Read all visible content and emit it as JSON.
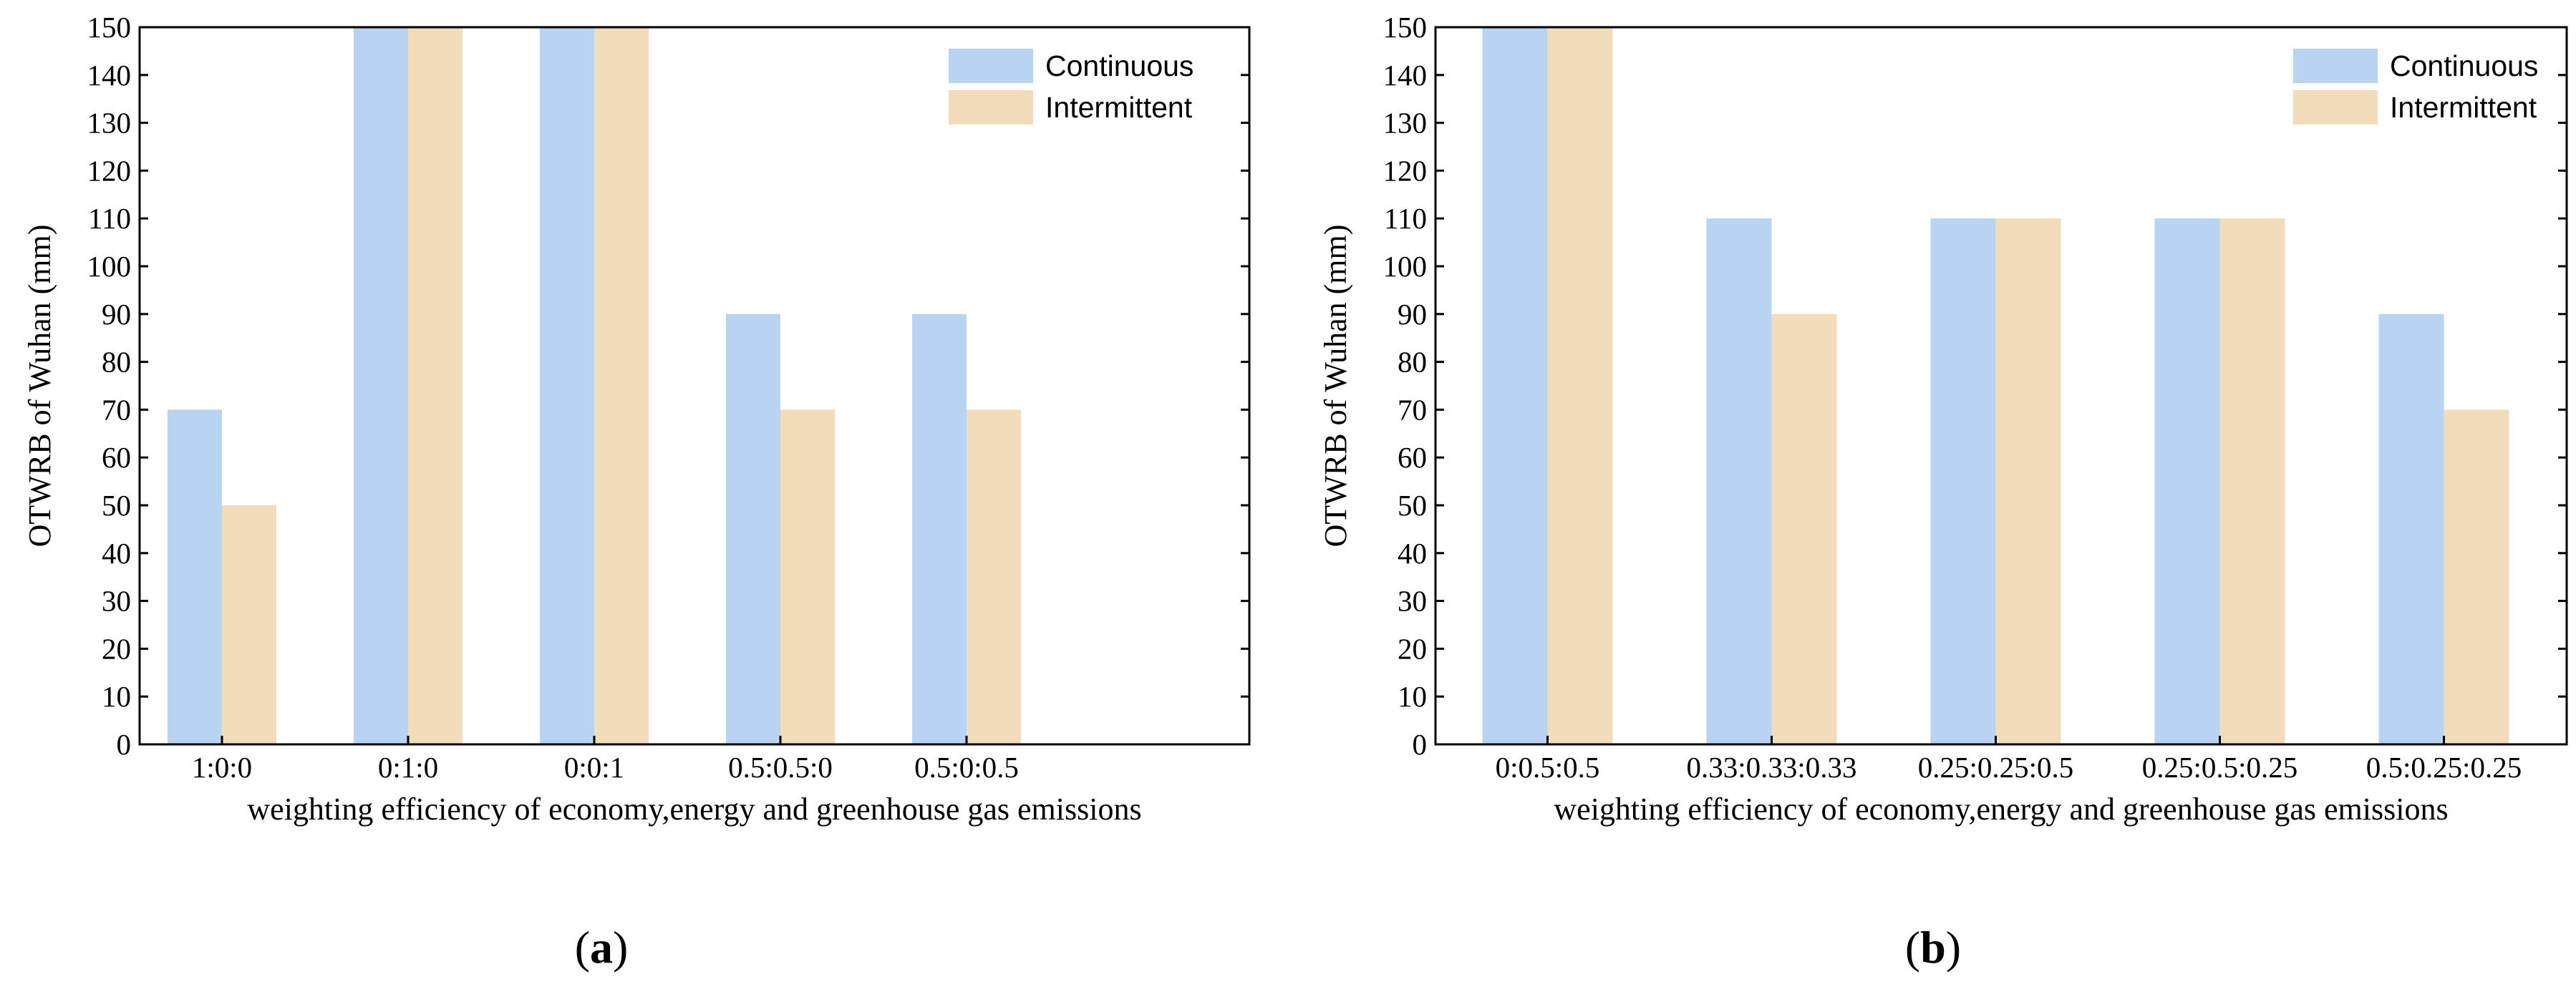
{
  "colors": {
    "continuous": "#b9d3f2",
    "intermittent": "#f2dcb9",
    "axis": "#000000"
  },
  "chart_data": [
    {
      "type": "bar",
      "panel_label": "a",
      "ylabel": "OTWRB of Wuhan (mm)",
      "xlabel": "weighting efficiency of economy,energy and greenhouse gas emissions",
      "ylim": [
        0,
        150
      ],
      "ytick_step": 10,
      "categories": [
        "1:0:0",
        "0:1:0",
        "0:0:1",
        "0.5:0.5:0",
        "0.5:0:0.5"
      ],
      "legend_position": "top-right",
      "series": [
        {
          "name": "Continuous",
          "values": [
            70,
            150,
            150,
            90,
            90
          ]
        },
        {
          "name": "Intermittent",
          "values": [
            50,
            150,
            150,
            70,
            70
          ]
        }
      ]
    },
    {
      "type": "bar",
      "panel_label": "b",
      "ylabel": "OTWRB of Wuhan (mm)",
      "xlabel": "weighting efficiency of economy,energy and greenhouse gas emissions",
      "ylim": [
        0,
        150
      ],
      "ytick_step": 10,
      "categories": [
        "0:0.5:0.5",
        "0.33:0.33:0.33",
        "0.25:0.25:0.5",
        "0.25:0.5:0.25",
        "0.5:0.25:0.25"
      ],
      "legend_position": "top-right",
      "series": [
        {
          "name": "Continuous",
          "values": [
            150,
            110,
            110,
            110,
            90
          ]
        },
        {
          "name": "Intermittent",
          "values": [
            150,
            90,
            110,
            110,
            70
          ]
        }
      ]
    }
  ]
}
